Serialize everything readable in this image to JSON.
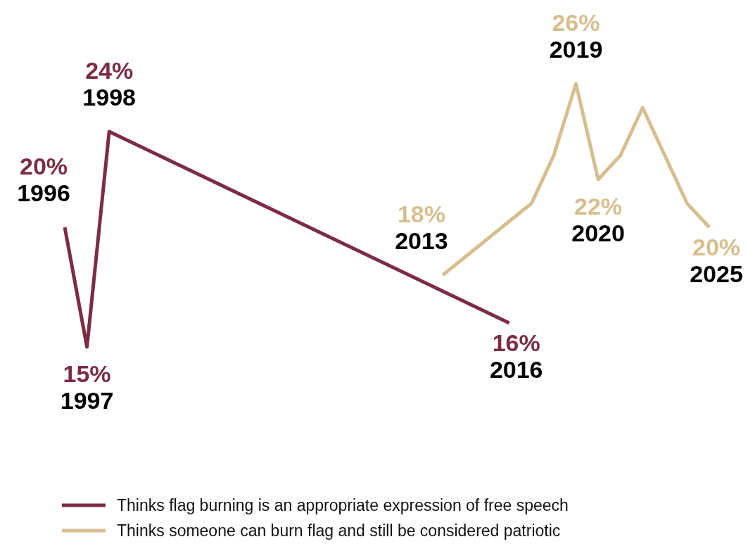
{
  "chart_data": {
    "type": "line",
    "legend": "bottom",
    "line_style": "solid",
    "marker": "none",
    "categories": [
      null,
      null,
      null,
      null,
      null,
      null,
      null,
      null,
      null,
      null,
      null,
      null,
      null,
      null,
      null,
      null,
      null,
      null,
      null,
      null,
      null,
      null,
      null,
      null,
      null,
      null,
      null,
      null,
      null,
      null
    ],
    "series": [
      {
        "name": "Thinks flag burning is an appropriate expression of free speech",
        "color": "#7b2d43",
        "values": [
          20,
          15,
          24,
          null,
          null,
          null,
          null,
          null,
          null,
          null,
          null,
          null,
          null,
          null,
          null,
          null,
          null,
          null,
          null,
          null,
          16,
          null,
          null,
          null,
          null,
          null,
          null,
          null,
          null,
          null
        ],
        "value_labels": [
          "20%",
          "15%",
          "24%",
          null,
          null,
          null,
          null,
          null,
          null,
          null,
          null,
          null,
          null,
          null,
          null,
          null,
          null,
          null,
          null,
          null,
          "16%",
          null,
          null,
          null,
          null,
          null,
          null,
          null,
          null,
          null
        ]
      },
      {
        "name": "Thinks someone can burn flag and still be considered patriotic",
        "color": "#d6bf8f",
        "values": [
          null,
          null,
          null,
          null,
          null,
          null,
          null,
          null,
          null,
          null,
          null,
          null,
          null,
          null,
          null,
          null,
          null,
          18,
          null,
          null,
          null,
          21,
          23,
          26,
          22,
          23,
          25,
          null,
          21,
          20
        ],
        "value_labels": [
          null,
          null,
          null,
          null,
          null,
          null,
          null,
          null,
          null,
          null,
          null,
          null,
          null,
          null,
          null,
          null,
          null,
          "18%",
          null,
          null,
          null,
          null,
          null,
          "26%",
          "22%",
          null,
          null,
          null,
          null,
          "20%"
        ]
      }
    ],
    "annotations": [
      "1996",
      "1997",
      "1998",
      "2016",
      "2013",
      "2019",
      "2020",
      "2025"
    ]
  }
}
